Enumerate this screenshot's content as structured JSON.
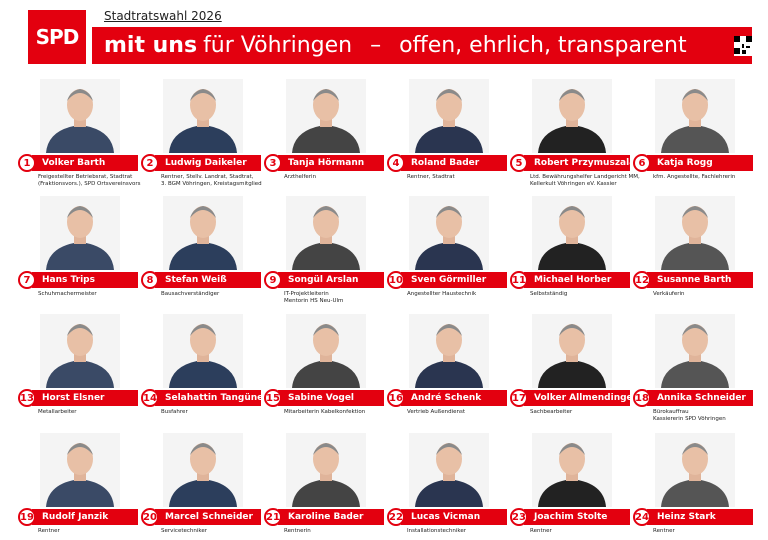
{
  "header": {
    "logo": "SPD",
    "election": "Stadtratswahl 2026",
    "headline_bold": "mit uns",
    "headline_rest": "für Vöhringen",
    "dash": "–",
    "slogan": "offen, ehrlich, transparent"
  },
  "candidates": [
    {
      "number": 1,
      "name": "Volker Barth",
      "description": [
        "Freigestellter Betriebsrat, Stadtrat",
        "(Fraktionsvors.), SPD Ortsvereinsvors"
      ]
    },
    {
      "number": 2,
      "name": "Ludwig Daikeler",
      "description": [
        "Rentner, Stellv. Landrat, Stadtrat,",
        "3. BGM Vöhringen, Kreistagsmitglied"
      ]
    },
    {
      "number": 3,
      "name": "Tanja Hörmann",
      "description": [
        "Arzthelferin"
      ]
    },
    {
      "number": 4,
      "name": "Roland Bader",
      "description": [
        "Rentner, Stadtrat"
      ]
    },
    {
      "number": 5,
      "name": "Robert Przymuszala",
      "description": [
        "Ltd. Bewährungshelfer Landgericht MM,",
        "Kellerkult Vöhringen eV. Kassier"
      ]
    },
    {
      "number": 6,
      "name": "Katja Rogg",
      "description": [
        "kfm. Angestellte, Fachlehrerin"
      ]
    },
    {
      "number": 7,
      "name": "Hans Trips",
      "description": [
        "Schuhmachermeister"
      ]
    },
    {
      "number": 8,
      "name": "Stefan Weiß",
      "description": [
        "Bausachverständiger"
      ]
    },
    {
      "number": 9,
      "name": "Songül Arslan",
      "description": [
        "IT-Projektleiterin",
        "Mentorin HS Neu-Ulm"
      ]
    },
    {
      "number": 10,
      "name": "Sven Görmiller",
      "description": [
        "Angestellter Haustechnik"
      ]
    },
    {
      "number": 11,
      "name": "Michael Horber",
      "description": [
        "Selbstständig"
      ]
    },
    {
      "number": 12,
      "name": "Susanne Barth",
      "description": [
        "Verkäuferin"
      ]
    },
    {
      "number": 13,
      "name": "Horst Elsner",
      "description": [
        "Metallarbeiter"
      ]
    },
    {
      "number": 14,
      "name": "Selahattin Tangüner",
      "description": [
        "Busfahrer"
      ]
    },
    {
      "number": 15,
      "name": "Sabine Vogel",
      "description": [
        "Mitarbeiterin Kabelkonfektion"
      ]
    },
    {
      "number": 16,
      "name": "André Schenk",
      "description": [
        "Vertrieb Außendienst"
      ]
    },
    {
      "number": 17,
      "name": "Volker Allmendinger",
      "description": [
        "Sachbearbeiter"
      ]
    },
    {
      "number": 18,
      "name": "Annika Schneider",
      "description": [
        "Bürokauffrau",
        "Kassiererin SPD Vöhringen"
      ]
    },
    {
      "number": 19,
      "name": "Rudolf Janzik",
      "description": [
        "Rentner"
      ]
    },
    {
      "number": 20,
      "name": "Marcel Schneider",
      "description": [
        "Servicetechniker"
      ]
    },
    {
      "number": 21,
      "name": "Karoline Bader",
      "description": [
        "Rentnerin"
      ]
    },
    {
      "number": 22,
      "name": "Lucas Vicman",
      "description": [
        "Installationstechniker"
      ]
    },
    {
      "number": 23,
      "name": "Joachim Stolte",
      "description": [
        "Rentner"
      ]
    },
    {
      "number": 24,
      "name": "Heinz Stark",
      "description": [
        "Rentner"
      ]
    }
  ]
}
